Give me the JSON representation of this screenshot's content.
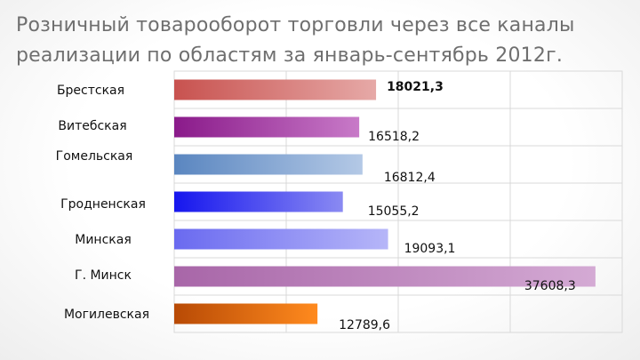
{
  "title": "Розничный товарооборот торговли через все каналы реализации по областям за январь-сентябрь 2012г.",
  "chart_data": {
    "type": "bar",
    "orientation": "horizontal",
    "grid": true,
    "xlim": [
      0,
      40000
    ],
    "categories": [
      "Брестская",
      "Витебская",
      "Гомельская",
      "Гродненская",
      "Минская",
      "Г. Минск",
      "Могилевская"
    ],
    "values": [
      18021.3,
      16518.2,
      16812.4,
      15055.2,
      19093.1,
      37608.3,
      12789.6
    ],
    "data_labels": [
      "18021,3",
      "16518,2",
      "16812,4",
      "15055,2",
      "19093,1",
      "37608,3",
      "12789,6"
    ],
    "colors": [
      [
        "#c8524f",
        "#e6a9a7"
      ],
      [
        "#8a1a8a",
        "#c87ac8"
      ],
      [
        "#5a86c0",
        "#b4c9e6"
      ],
      [
        "#1616ee",
        "#8a8af2"
      ],
      [
        "#6a6af0",
        "#b6b6f8"
      ],
      [
        "#a866a8",
        "#d4aad4"
      ],
      [
        "#b84a05",
        "#ff8a1e"
      ]
    ]
  }
}
